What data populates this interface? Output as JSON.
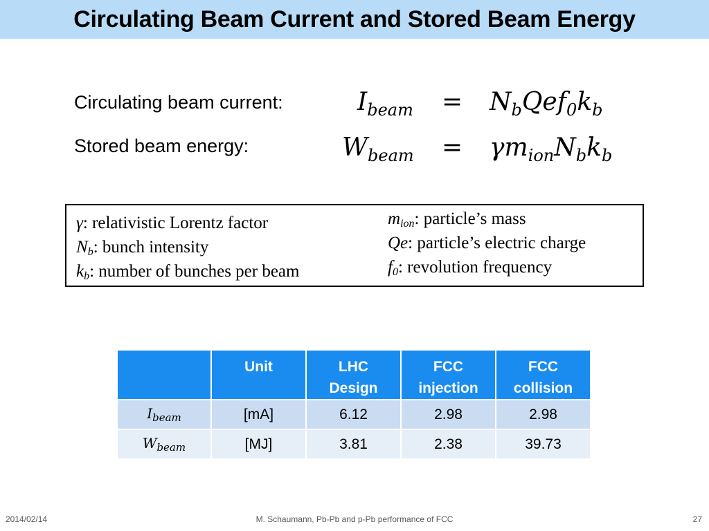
{
  "title": "Circulating Beam Current and Stored Beam Energy",
  "equations": [
    {
      "label": "Circulating beam current:",
      "lhs_symbol": "I",
      "lhs_subscript": "beam",
      "equals": "=",
      "rhs": "N_b Q e f_0 k_b"
    },
    {
      "label": "Stored beam energy:",
      "lhs_symbol": "W",
      "lhs_subscript": "beam",
      "equals": "=",
      "rhs": "γ m_ion N_b k_b"
    }
  ],
  "definitions": {
    "left": [
      {
        "symbol": "γ",
        "subscript": "",
        "text": ": relativistic Lorentz factor"
      },
      {
        "symbol": "N",
        "subscript": "b",
        "text": ": bunch intensity"
      },
      {
        "symbol": "k",
        "subscript": "b",
        "text": ": number of bunches per beam"
      }
    ],
    "right": [
      {
        "symbol": "m",
        "subscript": "ion",
        "text": ": particle’s mass"
      },
      {
        "symbol": "Qe",
        "subscript": "",
        "text": ": particle’s electric charge"
      },
      {
        "symbol": "f",
        "subscript": "0",
        "text": ": revolution frequency"
      }
    ]
  },
  "table": {
    "headers": [
      "",
      "Unit",
      "LHC Design",
      "FCC injection",
      "FCC collision"
    ],
    "header_lines": [
      [
        ""
      ],
      [
        "Unit"
      ],
      [
        "LHC",
        "Design"
      ],
      [
        "FCC",
        "injection"
      ],
      [
        "FCC",
        "collision"
      ]
    ],
    "rows": [
      {
        "symbol": "I",
        "subscript": "beam",
        "unit": "[mA]",
        "values": [
          "6.12",
          "2.98",
          "2.98"
        ]
      },
      {
        "symbol": "W",
        "subscript": "beam",
        "unit": "[MJ]",
        "values": [
          "3.81",
          "2.38",
          "39.73"
        ]
      }
    ]
  },
  "footer": {
    "date": "2014/02/14",
    "center": "M. Schaumann, Pb-Pb and p-Pb performance of FCC",
    "page": "27"
  },
  "colors": {
    "title_bar": "#b8dcf7",
    "table_header": "#1a8cf0",
    "row_dark": "#c9dcf2",
    "row_light": "#e6eef8"
  }
}
